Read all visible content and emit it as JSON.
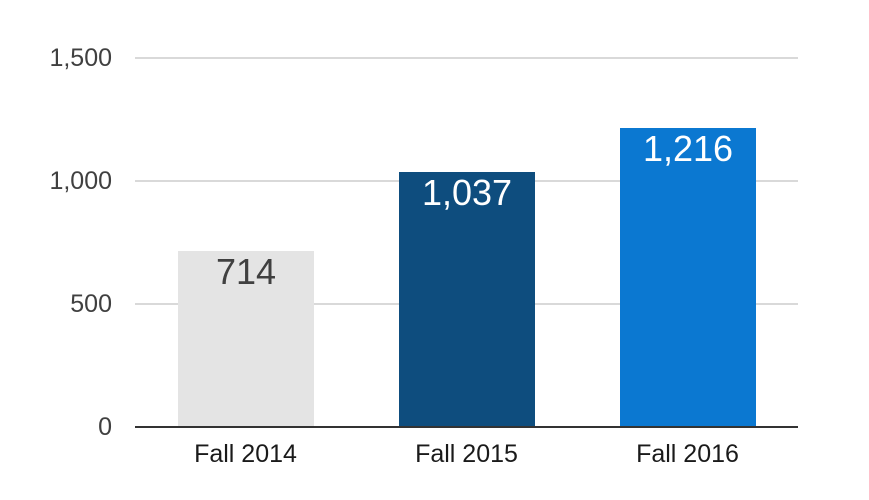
{
  "chart_data": {
    "type": "bar",
    "title": "",
    "xlabel": "",
    "ylabel": "",
    "categories": [
      "Fall 2014",
      "Fall 2015",
      "Fall 2016"
    ],
    "values": [
      714,
      1037,
      1216
    ],
    "value_labels": [
      "714",
      "1,037",
      "1,216"
    ],
    "bar_colors": [
      "#e4e4e4",
      "#0e4d7e",
      "#0b78d1"
    ],
    "value_label_colors": [
      "#404040",
      "#ffffff",
      "#ffffff"
    ],
    "ylim": [
      0,
      1500
    ],
    "yticks": [
      0,
      500,
      1000,
      1500
    ],
    "ytick_labels": [
      "0",
      "500",
      "1,000",
      "1,500"
    ],
    "grid": true,
    "legend": "none"
  },
  "colors": {
    "background": "#ffffff",
    "gridline": "#d9d9d9",
    "axis_line": "#333333",
    "ytick_text": "#404040",
    "xtick_text": "#1a1a1a"
  }
}
